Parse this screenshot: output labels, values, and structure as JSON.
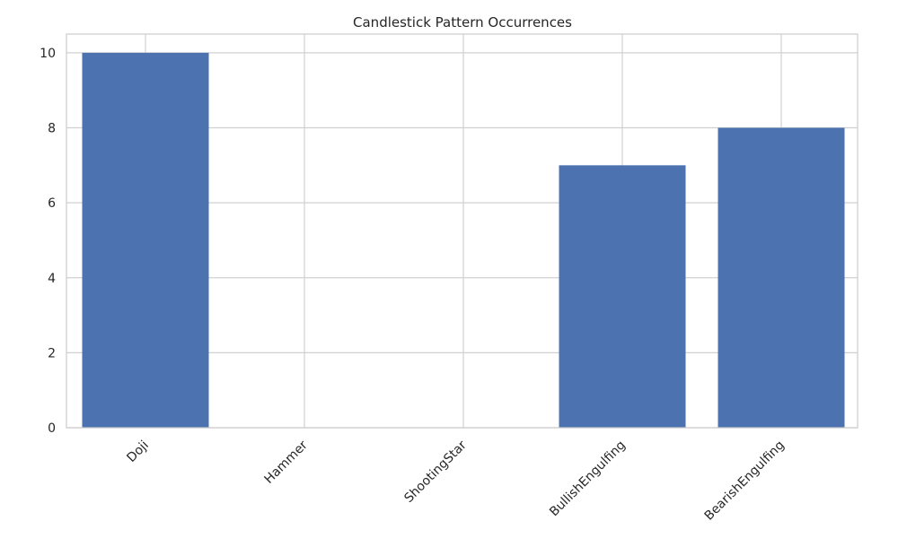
{
  "chart_data": {
    "type": "bar",
    "title": "Candlestick Pattern Occurrences",
    "xlabel": "",
    "ylabel": "",
    "categories": [
      "Doji",
      "Hammer",
      "ShootingStar",
      "BullishEngulfing",
      "BearishEngulfing"
    ],
    "values": [
      10,
      0,
      0,
      7,
      8
    ],
    "ylim": [
      0,
      10.5
    ],
    "yticks": [
      0,
      2,
      4,
      6,
      8,
      10
    ],
    "grid": true,
    "bar_color": "#4c72b0",
    "x_tick_rotation_deg": 45
  }
}
